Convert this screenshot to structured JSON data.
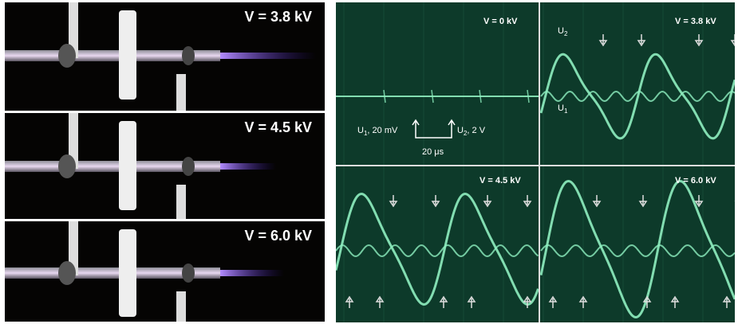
{
  "photos": [
    {
      "voltage_label": "V = 3.8 kV"
    },
    {
      "voltage_label": "V = 4.5 kV"
    },
    {
      "voltage_label": "V = 6.0 kV"
    }
  ],
  "scope": {
    "panels": [
      {
        "voltage_label": "V = 0 kV"
      },
      {
        "voltage_label": "V = 3.8 kV"
      },
      {
        "voltage_label": "V = 4.5 kV"
      },
      {
        "voltage_label": "V = 6.0 kV"
      }
    ],
    "u1_scale": "20 mV",
    "u2_scale": "2 V",
    "time_scale": "20 μs",
    "u2_label": "U",
    "u2_sub": "2",
    "u1_label": "U",
    "u1_sub": "1",
    "scale_u1_prefix": "U",
    "scale_u1_sub": "1",
    "scale_u2_prefix": "U",
    "scale_u2_sub": "2",
    "trace_color": "#8ff0c0",
    "screen_color": "#0d3a2a"
  }
}
